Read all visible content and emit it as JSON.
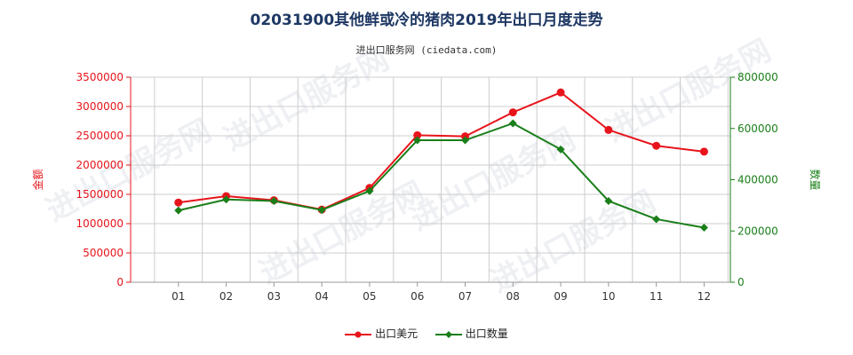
{
  "title": "02031900其他鲜或冷的猪肉2019年出口月度走势",
  "subtitle": "进出口服务网 (ciedata.com)",
  "watermark": "进出口服务网",
  "colors": {
    "value_series": "#e8141b",
    "quantity_series": "#1a7f1a",
    "left_axis": "#e8141b",
    "right_axis": "#1a7f1a",
    "grid": "#cccccc"
  },
  "chart_data": {
    "type": "line",
    "categories": [
      "01",
      "02",
      "03",
      "04",
      "05",
      "06",
      "07",
      "08",
      "09",
      "10",
      "11",
      "12"
    ],
    "y_left": {
      "label": "金额",
      "ylim": [
        0,
        3500000
      ],
      "ticks": [
        0,
        500000,
        1000000,
        1500000,
        2000000,
        2500000,
        3000000,
        3500000
      ]
    },
    "y_right": {
      "label": "数量",
      "ylim": [
        0,
        800000
      ],
      "ticks": [
        0,
        200000,
        400000,
        600000,
        800000
      ]
    },
    "grid": true,
    "legend_position": "bottom-center",
    "series": [
      {
        "name": "出口美元",
        "axis": "left",
        "color": "#e8141b",
        "marker": "circle",
        "values": [
          1360000,
          1470000,
          1400000,
          1240000,
          1610000,
          2510000,
          2490000,
          2900000,
          3240000,
          2600000,
          2330000,
          2230000
        ]
      },
      {
        "name": "出口数量",
        "axis": "right",
        "color": "#1a7f1a",
        "marker": "diamond",
        "values": [
          280000,
          323000,
          317000,
          282000,
          356000,
          554000,
          554000,
          620000,
          518000,
          317000,
          246000,
          213000
        ]
      }
    ]
  }
}
